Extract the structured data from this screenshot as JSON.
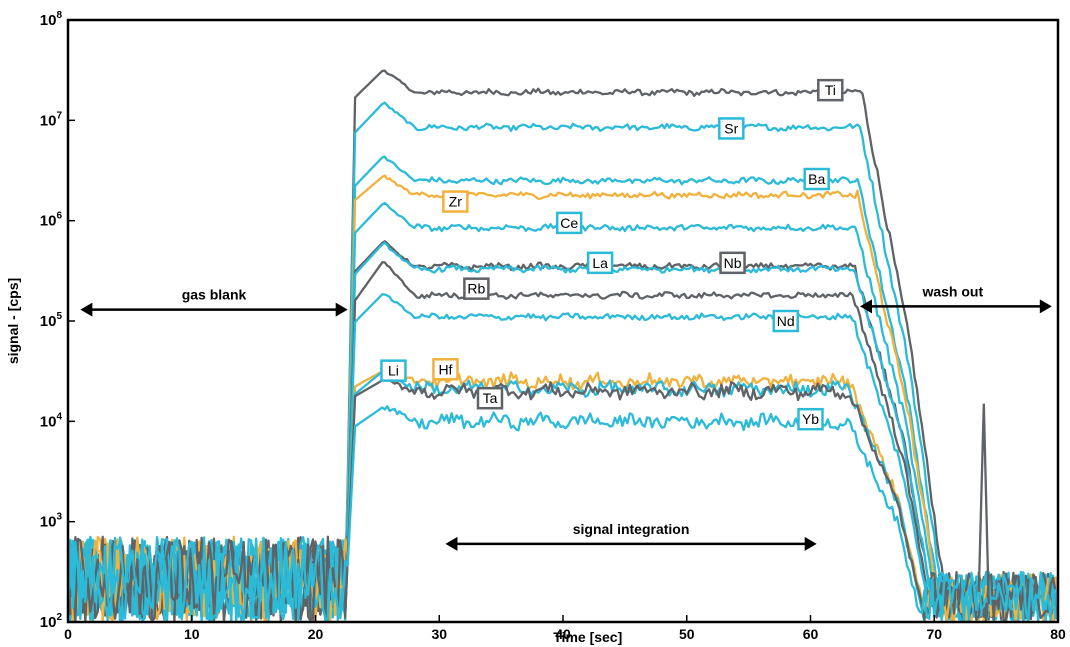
{
  "chart_data": {
    "type": "line",
    "title": "",
    "xlabel": "Time [sec]",
    "ylabel": "signal - [cps]",
    "xlim": [
      0,
      80
    ],
    "ylim": [
      100,
      100000000
    ],
    "yscale": "log",
    "grid": false,
    "x_ticks": [
      "0",
      "10",
      "20",
      "30",
      "40",
      "50",
      "60",
      "70",
      "80"
    ],
    "y_ticks": [
      {
        "base": "10",
        "exp": "2"
      },
      {
        "base": "10",
        "exp": "3"
      },
      {
        "base": "10",
        "exp": "4"
      },
      {
        "base": "10",
        "exp": "5"
      },
      {
        "base": "10",
        "exp": "6"
      },
      {
        "base": "10",
        "exp": "7"
      },
      {
        "base": "10",
        "exp": "8"
      }
    ],
    "colors": {
      "cyan": "#2bbbd8",
      "gray": "#5f6266",
      "orange": "#f0b13d"
    },
    "series": [
      {
        "name": "Ti",
        "color": "#5f6266",
        "plateau": 19000000,
        "peak": 32000000,
        "label_x": 61.6,
        "label_value": 20000000
      },
      {
        "name": "Sr",
        "color": "#2bbbd8",
        "plateau": 8500000,
        "peak": 15000000,
        "label_x": 53.6,
        "label_value": 8300000
      },
      {
        "name": "Ba",
        "color": "#2bbbd8",
        "plateau": 2500000,
        "peak": 4400000,
        "label_x": 60.5,
        "label_value": 2600000
      },
      {
        "name": "Zr",
        "color": "#f0b13d",
        "plateau": 1800000,
        "peak": 2800000,
        "label_x": 31.3,
        "label_value": 1550000
      },
      {
        "name": "Ce",
        "color": "#2bbbd8",
        "plateau": 850000,
        "peak": 1500000,
        "label_x": 40.5,
        "label_value": 950000
      },
      {
        "name": "La",
        "color": "#2bbbd8",
        "plateau": 330000,
        "peak": 600000,
        "label_x": 43.0,
        "label_value": 380000
      },
      {
        "name": "Nb",
        "color": "#5f6266",
        "plateau": 350000,
        "peak": 620000,
        "label_x": 53.7,
        "label_value": 380000
      },
      {
        "name": "Rb",
        "color": "#5f6266",
        "plateau": 180000,
        "peak": 400000,
        "label_x": 33.0,
        "label_value": 210000
      },
      {
        "name": "Nd",
        "color": "#2bbbd8",
        "plateau": 110000,
        "peak": 190000,
        "label_x": 58.0,
        "label_value": 100000
      },
      {
        "name": "Li",
        "color": "#2bbbd8",
        "plateau": 21000,
        "peak": 32000,
        "label_x": 26.3,
        "label_value": 32000
      },
      {
        "name": "Hf",
        "color": "#f0b13d",
        "plateau": 25000,
        "peak": 32000,
        "label_x": 30.5,
        "label_value": 33000
      },
      {
        "name": "Ta",
        "color": "#5f6266",
        "plateau": 20000,
        "peak": 26000,
        "label_x": 34.1,
        "label_value": 17000
      },
      {
        "name": "Yb",
        "color": "#2bbbd8",
        "plateau": 10000,
        "peak": 14000,
        "label_x": 60.0,
        "label_value": 10500
      }
    ],
    "annotations": [
      {
        "text": "gas blank",
        "x_from": 1,
        "x_to": 22.6,
        "value": 130000,
        "label_x": 11.8
      },
      {
        "text": "wash out",
        "x_from": 64,
        "x_to": 79.5,
        "value": 140000,
        "label_x": 71.5
      },
      {
        "text": "signal integration",
        "x_from": 30.5,
        "x_to": 60.5,
        "value": 600,
        "label_x": 45.5
      }
    ]
  }
}
